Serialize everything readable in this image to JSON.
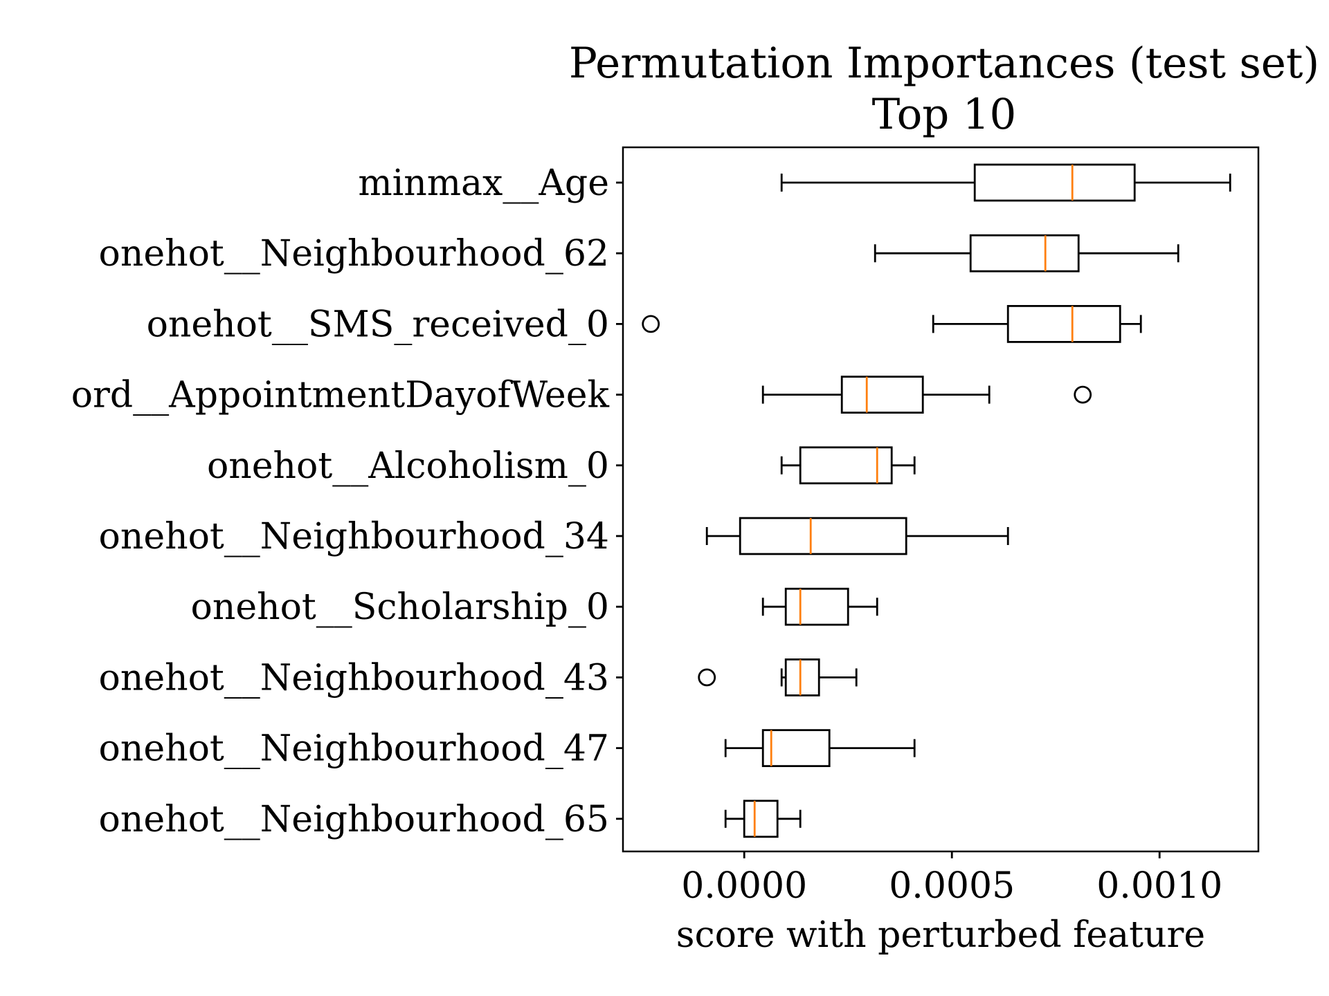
{
  "chart_data": {
    "type": "boxplot",
    "orientation": "horizontal",
    "title": "Permutation Importances (test set)",
    "subtitle": "Top 10",
    "xlabel": "score with perturbed feature",
    "ylabel": "",
    "xlim": [
      -0.000292,
      0.001238
    ],
    "xticks": [
      0.0,
      0.0005,
      0.001
    ],
    "xtick_labels": [
      "0.0000",
      "0.0005",
      "0.0010"
    ],
    "grid": false,
    "colors": {
      "box": "#000000",
      "median": "#ff7f0e"
    },
    "categories": [
      "minmax__Age",
      "onehot__Neighbourhood_62",
      "onehot__SMS_received_0",
      "ord__AppointmentDayofWeek",
      "onehot__Alcoholism_0",
      "onehot__Neighbourhood_34",
      "onehot__Scholarship_0",
      "onehot__Neighbourhood_43",
      "onehot__Neighbourhood_47",
      "onehot__Neighbourhood_65"
    ],
    "boxes": [
      {
        "whislo": 9e-05,
        "q1": 0.000555,
        "med": 0.00079,
        "q3": 0.00094,
        "whishi": 0.00117,
        "fliers": []
      },
      {
        "whislo": 0.000315,
        "q1": 0.000545,
        "med": 0.000725,
        "q3": 0.000805,
        "whishi": 0.001045,
        "fliers": []
      },
      {
        "whislo": 0.000455,
        "q1": 0.000635,
        "med": 0.00079,
        "q3": 0.000905,
        "whishi": 0.000955,
        "fliers": [
          -0.000225
        ]
      },
      {
        "whislo": 4.5e-05,
        "q1": 0.000235,
        "med": 0.000295,
        "q3": 0.00043,
        "whishi": 0.00059,
        "fliers": [
          0.000815
        ]
      },
      {
        "whislo": 9e-05,
        "q1": 0.000135,
        "med": 0.00032,
        "q3": 0.000355,
        "whishi": 0.00041,
        "fliers": []
      },
      {
        "whislo": -9e-05,
        "q1": -1e-05,
        "med": 0.00016,
        "q3": 0.00039,
        "whishi": 0.000635,
        "fliers": []
      },
      {
        "whislo": 4.5e-05,
        "q1": 0.0001,
        "med": 0.000135,
        "q3": 0.00025,
        "whishi": 0.00032,
        "fliers": []
      },
      {
        "whislo": 9e-05,
        "q1": 0.0001,
        "med": 0.000135,
        "q3": 0.00018,
        "whishi": 0.00027,
        "fliers": [
          -9e-05
        ]
      },
      {
        "whislo": -4.5e-05,
        "q1": 4.5e-05,
        "med": 6.5e-05,
        "q3": 0.000205,
        "whishi": 0.00041,
        "fliers": []
      },
      {
        "whislo": -4.5e-05,
        "q1": 0.0,
        "med": 2.5e-05,
        "q3": 8e-05,
        "whishi": 0.000135,
        "fliers": []
      }
    ]
  }
}
